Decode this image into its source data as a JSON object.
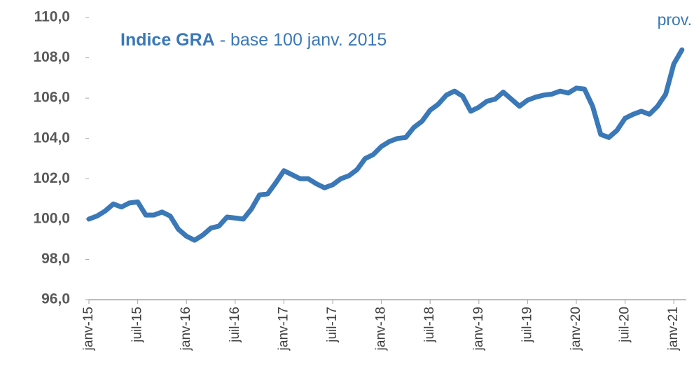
{
  "chart_data": {
    "type": "line",
    "title": "Indice GRA",
    "subtitle": "- base 100 janv. 2015",
    "annotation": "prov.",
    "categories": [
      "janv-15",
      null,
      null,
      null,
      null,
      null,
      "juil-15",
      null,
      null,
      null,
      null,
      null,
      "janv-16",
      null,
      null,
      null,
      null,
      null,
      "juil-16",
      null,
      null,
      null,
      null,
      null,
      "janv-17",
      null,
      null,
      null,
      null,
      null,
      "juil-17",
      null,
      null,
      null,
      null,
      null,
      "janv-18",
      null,
      null,
      null,
      null,
      null,
      "juil-18",
      null,
      null,
      null,
      null,
      null,
      "janv-19",
      null,
      null,
      null,
      null,
      null,
      "juil-19",
      null,
      null,
      null,
      null,
      null,
      "janv-20",
      null,
      null,
      null,
      null,
      null,
      "juil-20",
      null,
      null,
      null,
      null,
      null,
      "janv-21",
      null
    ],
    "series": [
      {
        "name": "Indice GRA",
        "color": "#3a78b8",
        "values": [
          100.0,
          100.15,
          100.4,
          100.75,
          100.6,
          100.8,
          100.85,
          100.2,
          100.2,
          100.35,
          100.15,
          99.5,
          99.15,
          98.95,
          99.2,
          99.55,
          99.65,
          100.1,
          100.05,
          100.0,
          100.5,
          101.2,
          101.25,
          101.8,
          102.4,
          102.2,
          102.0,
          102.0,
          101.75,
          101.55,
          101.7,
          102.0,
          102.15,
          102.45,
          103.0,
          103.2,
          103.6,
          103.85,
          104.0,
          104.05,
          104.55,
          104.85,
          105.4,
          105.7,
          106.15,
          106.35,
          106.1,
          105.35,
          105.55,
          105.85,
          105.95,
          106.3,
          105.95,
          105.6,
          105.9,
          106.05,
          106.15,
          106.2,
          106.35,
          106.25,
          106.5,
          106.45,
          105.6,
          104.2,
          104.05,
          104.4,
          105.0,
          105.2,
          105.35,
          105.2,
          105.6,
          106.2,
          107.7,
          108.4
        ]
      }
    ],
    "ylim": [
      96,
      110
    ],
    "yticks": [
      {
        "value": 96,
        "label": "96,0"
      },
      {
        "value": 98,
        "label": "98,0"
      },
      {
        "value": 100,
        "label": "100,0"
      },
      {
        "value": 102,
        "label": "102,0"
      },
      {
        "value": 104,
        "label": "104,0"
      },
      {
        "value": 106,
        "label": "106,0"
      },
      {
        "value": 108,
        "label": "108,0"
      },
      {
        "value": 110,
        "label": "110,0"
      }
    ],
    "grid": false
  }
}
